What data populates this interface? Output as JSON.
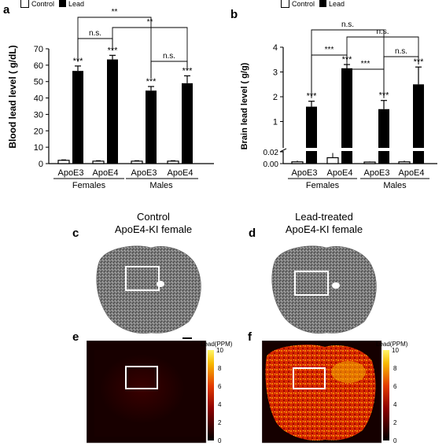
{
  "panel_letters": {
    "a": "a",
    "b": "b",
    "c": "c",
    "d": "d",
    "e": "e",
    "f": "f"
  },
  "legend": {
    "control": "Control",
    "lead": "Lead"
  },
  "colors": {
    "control": "#ffffff",
    "lead": "#000000",
    "accent": "#ffffff"
  },
  "chart_data": [
    {
      "type": "bar",
      "panel": "a",
      "categories": [
        "ApoE3",
        "ApoE4",
        "ApoE3",
        "ApoE4"
      ],
      "groups": [
        "Females",
        "Males"
      ],
      "ylabel": "Blood lead level (  g/dL)",
      "ylim": [
        0,
        70
      ],
      "yticks": [
        "0",
        "10",
        "20",
        "30",
        "40",
        "50",
        "60",
        "70"
      ],
      "series": [
        {
          "name": "Control",
          "values": [
            2,
            1.5,
            1.5,
            1.5
          ],
          "errors": [
            0.3,
            0.3,
            0.3,
            0.3
          ]
        },
        {
          "name": "Lead",
          "values": [
            56.5,
            63.5,
            44.5,
            49
          ],
          "errors": [
            3,
            2.5,
            2.5,
            4.5
          ]
        }
      ],
      "significance": [
        "***",
        "***",
        "***",
        "***"
      ],
      "comparisons": [
        {
          "label": "n.s."
        },
        {
          "label": "**"
        },
        {
          "label": "**"
        },
        {
          "label": "n.s."
        }
      ]
    },
    {
      "type": "bar",
      "panel": "b",
      "categories": [
        "ApoE3",
        "ApoE4",
        "ApoE3",
        "ApoE4"
      ],
      "groups": [
        "Females",
        "Males"
      ],
      "ylabel": "Brain lead level (  g/g)",
      "axis_break": true,
      "lower_yticks": [
        "0.00",
        "0.02"
      ],
      "upper_yticks": [
        "1",
        "2",
        "3",
        "4"
      ],
      "series": [
        {
          "name": "Control",
          "values": [
            0.003,
            0.01,
            0.002,
            0.003
          ],
          "errors": [
            0.002,
            0.008,
            0.001,
            0.002
          ]
        },
        {
          "name": "Lead",
          "values": [
            1.6,
            3.15,
            1.5,
            2.5
          ],
          "errors": [
            0.22,
            0.15,
            0.35,
            0.7
          ]
        }
      ],
      "significance": [
        "***",
        "***",
        "***",
        "***"
      ],
      "comparisons": [
        {
          "label": "n.s."
        },
        {
          "label": "n.s."
        },
        {
          "label": "***"
        },
        {
          "label": "***"
        },
        {
          "label": "n.s."
        }
      ]
    }
  ],
  "images": {
    "c_title_line1": "Control",
    "c_title_line2": "ApoE4-KI female",
    "d_title_line1": "Lead-treated",
    "d_title_line2": "ApoE4-KI female",
    "colorbar_label": "Lead(PPM)",
    "colorbar_ticks": [
      "10",
      "8",
      "6",
      "4",
      "2",
      "0"
    ]
  }
}
